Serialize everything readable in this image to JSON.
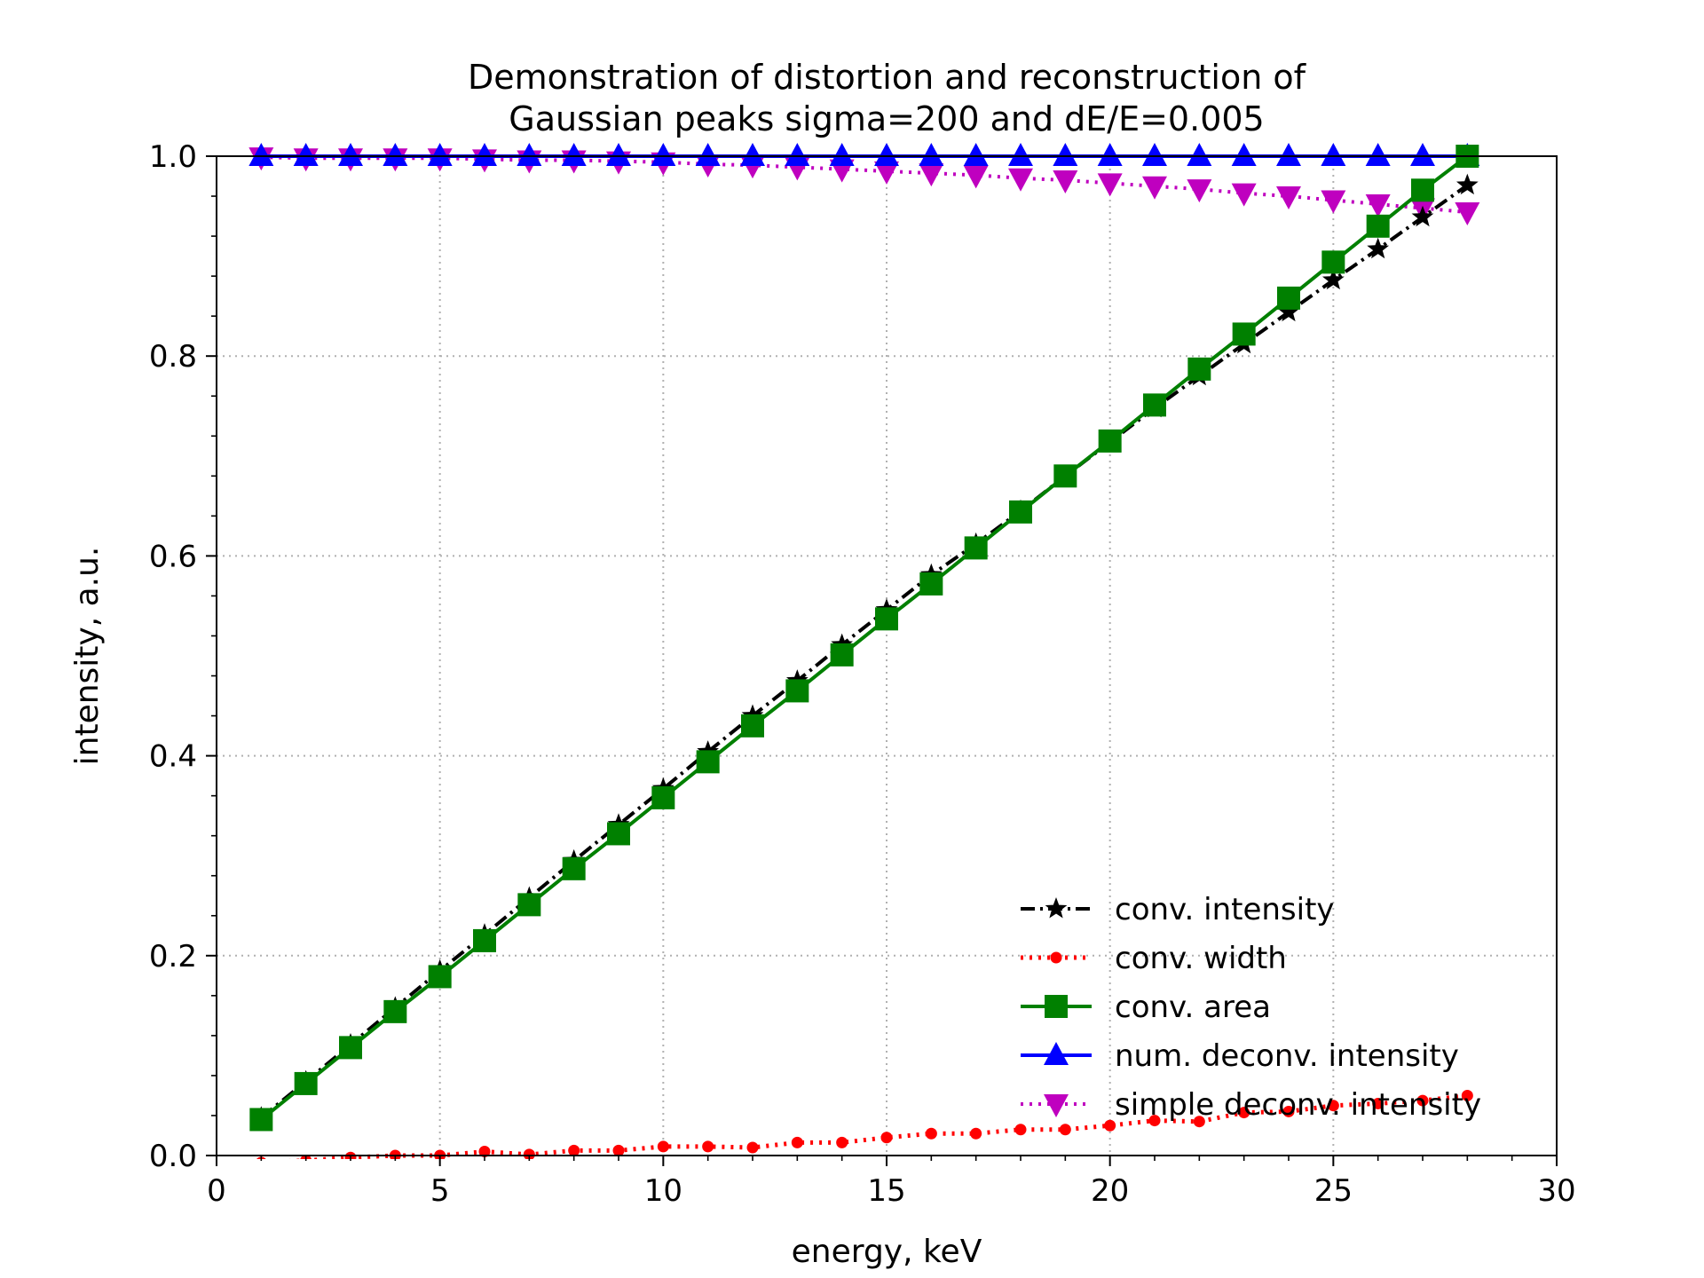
{
  "chart_data": {
    "type": "line",
    "title": "Demonstration of  distortion and reconstruction of\nGaussian peaks sigma=200 and dE/E=0.005",
    "xlabel": "energy, keV",
    "ylabel": "intensity, a.u.",
    "xlim": [
      0,
      30
    ],
    "ylim": [
      0,
      1.0
    ],
    "xticks": [
      "0",
      "5",
      "10",
      "15",
      "20",
      "25",
      "30"
    ],
    "yticks": [
      "0.0",
      "0.2",
      "0.4",
      "0.6",
      "0.8",
      "1.0"
    ],
    "grid": true,
    "legend_position": "lower-right",
    "x": [
      1,
      2,
      3,
      4,
      5,
      6,
      7,
      8,
      9,
      10,
      11,
      12,
      13,
      14,
      15,
      16,
      17,
      18,
      19,
      20,
      21,
      22,
      23,
      24,
      25,
      26,
      27,
      28
    ],
    "series": [
      {
        "name": "conv. intensity",
        "color": "#000000",
        "line_style": "dashdot",
        "marker": "star",
        "values": [
          0.038,
          0.074,
          0.111,
          0.148,
          0.185,
          0.221,
          0.258,
          0.295,
          0.331,
          0.367,
          0.404,
          0.44,
          0.475,
          0.511,
          0.546,
          0.581,
          0.612,
          0.645,
          0.68,
          0.714,
          0.748,
          0.78,
          0.812,
          0.844,
          0.876,
          0.907,
          0.939,
          0.971
        ]
      },
      {
        "name": "conv. width",
        "color": "#ff0000",
        "line_style": "dotted",
        "marker": "circle",
        "values": [
          -0.007,
          -0.005,
          -0.002,
          0.0,
          0.0,
          0.004,
          0.001,
          0.005,
          0.005,
          0.009,
          0.009,
          0.008,
          0.013,
          0.013,
          0.018,
          0.022,
          0.022,
          0.026,
          0.026,
          0.03,
          0.035,
          0.034,
          0.043,
          0.044,
          0.05,
          0.052,
          0.055,
          0.06
        ]
      },
      {
        "name": "conv. area",
        "color": "#008000",
        "line_style": "solid",
        "marker": "square",
        "values": [
          0.036,
          0.072,
          0.108,
          0.144,
          0.179,
          0.215,
          0.251,
          0.287,
          0.322,
          0.358,
          0.394,
          0.43,
          0.465,
          0.501,
          0.537,
          0.572,
          0.608,
          0.644,
          0.68,
          0.715,
          0.751,
          0.787,
          0.822,
          0.858,
          0.894,
          0.93,
          0.966,
          1.0
        ]
      },
      {
        "name": "num. deconv. intensity",
        "color": "#0000ff",
        "line_style": "solid",
        "marker": "triangle-up",
        "values": [
          1.0,
          1.0,
          1.0,
          1.0,
          1.0,
          1.0,
          1.0,
          1.0,
          1.0,
          1.0,
          1.0,
          1.0,
          1.0,
          1.0,
          1.0,
          1.0,
          1.0,
          1.0,
          1.0,
          1.0,
          1.0,
          1.0,
          1.0,
          1.0,
          1.0,
          1.0,
          1.0,
          1.0
        ]
      },
      {
        "name": "simple deconv. intensity",
        "color": "#bf00bf",
        "line_style": "dotted",
        "marker": "triangle-down",
        "values": [
          0.999,
          0.998,
          0.998,
          0.998,
          0.998,
          0.997,
          0.996,
          0.996,
          0.995,
          0.994,
          0.992,
          0.991,
          0.989,
          0.987,
          0.985,
          0.983,
          0.981,
          0.978,
          0.976,
          0.973,
          0.97,
          0.967,
          0.963,
          0.96,
          0.956,
          0.952,
          0.948,
          0.944
        ]
      }
    ]
  }
}
